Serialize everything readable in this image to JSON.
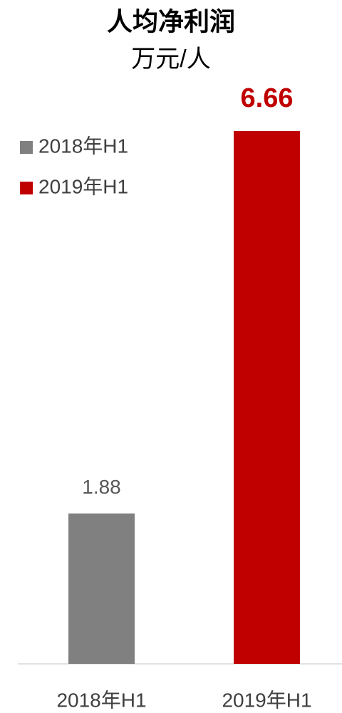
{
  "chart_data": {
    "type": "bar",
    "title": "人均净利润",
    "subtitle": "万元/人",
    "categories": [
      "2018年H1",
      "2019年H1"
    ],
    "values": [
      1.88,
      6.66
    ],
    "colors": [
      "#808080",
      "#c00000"
    ],
    "legend": "top-left",
    "grid": false
  }
}
